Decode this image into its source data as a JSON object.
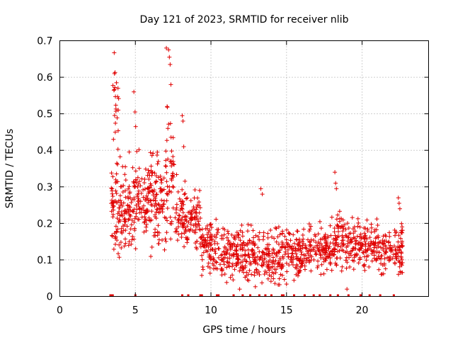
{
  "chart_data": {
    "type": "scatter",
    "title": "Day 121 of 2023, SRMTID for receiver nlib",
    "xlabel": "GPS time / hours",
    "ylabel": "SRMTID / TECUs",
    "xlim": [
      0,
      24.4
    ],
    "ylim": [
      0,
      0.7
    ],
    "xticks": [
      0,
      5,
      10,
      15,
      20
    ],
    "xtick_labels": [
      "0",
      "5",
      "10",
      "15",
      "20"
    ],
    "yticks": [
      0,
      0.1,
      0.2,
      0.3,
      0.4,
      0.5,
      0.6,
      0.7
    ],
    "ytick_labels": [
      "0",
      "0.1",
      "0.2",
      "0.3",
      "0.4",
      "0.5",
      "0.6",
      "0.7"
    ],
    "grid": true,
    "marker": "+",
    "color": "#e00000",
    "series": [
      {
        "name": "SRMTID",
        "segments": [
          {
            "x_start": 3.4,
            "x_end": 4.0,
            "level": 0.25,
            "spread": 0.14,
            "count": 60
          },
          {
            "x_start": 3.5,
            "x_end": 3.9,
            "level": 0.52,
            "spread": 0.1,
            "count": 18
          },
          {
            "x_start": 4.0,
            "x_end": 5.0,
            "level": 0.24,
            "spread": 0.12,
            "count": 90
          },
          {
            "x_start": 5.0,
            "x_end": 6.0,
            "level": 0.26,
            "spread": 0.12,
            "count": 90
          },
          {
            "x_start": 6.0,
            "x_end": 7.0,
            "level": 0.27,
            "spread": 0.13,
            "count": 90
          },
          {
            "x_start": 7.0,
            "x_end": 7.6,
            "level": 0.33,
            "spread": 0.18,
            "count": 50
          },
          {
            "x_start": 7.6,
            "x_end": 8.3,
            "level": 0.22,
            "spread": 0.09,
            "count": 55
          },
          {
            "x_start": 8.3,
            "x_end": 9.3,
            "level": 0.2,
            "spread": 0.09,
            "count": 75
          },
          {
            "x_start": 9.3,
            "x_end": 10.5,
            "level": 0.14,
            "spread": 0.07,
            "count": 95
          },
          {
            "x_start": 10.5,
            "x_end": 12.0,
            "level": 0.12,
            "spread": 0.07,
            "count": 110
          },
          {
            "x_start": 12.0,
            "x_end": 13.5,
            "level": 0.11,
            "spread": 0.07,
            "count": 110
          },
          {
            "x_start": 13.5,
            "x_end": 15.0,
            "level": 0.11,
            "spread": 0.07,
            "count": 110
          },
          {
            "x_start": 15.0,
            "x_end": 16.5,
            "level": 0.12,
            "spread": 0.06,
            "count": 110
          },
          {
            "x_start": 16.5,
            "x_end": 18.0,
            "level": 0.13,
            "spread": 0.06,
            "count": 110
          },
          {
            "x_start": 18.0,
            "x_end": 19.5,
            "level": 0.15,
            "spread": 0.07,
            "count": 110
          },
          {
            "x_start": 19.5,
            "x_end": 21.0,
            "level": 0.14,
            "spread": 0.06,
            "count": 110
          },
          {
            "x_start": 21.0,
            "x_end": 22.7,
            "level": 0.13,
            "spread": 0.06,
            "count": 120
          }
        ],
        "peaks": [
          {
            "x": 3.6,
            "y": 0.667
          },
          {
            "x": 3.62,
            "y": 0.61
          },
          {
            "x": 3.75,
            "y": 0.585
          },
          {
            "x": 3.85,
            "y": 0.57
          },
          {
            "x": 3.55,
            "y": 0.43
          },
          {
            "x": 4.9,
            "y": 0.56
          },
          {
            "x": 4.98,
            "y": 0.505
          },
          {
            "x": 5.02,
            "y": 0.465
          },
          {
            "x": 7.05,
            "y": 0.68
          },
          {
            "x": 7.2,
            "y": 0.675
          },
          {
            "x": 7.25,
            "y": 0.655
          },
          {
            "x": 7.3,
            "y": 0.635
          },
          {
            "x": 7.35,
            "y": 0.58
          },
          {
            "x": 7.1,
            "y": 0.52
          },
          {
            "x": 7.15,
            "y": 0.46
          },
          {
            "x": 8.1,
            "y": 0.495
          },
          {
            "x": 8.15,
            "y": 0.48
          },
          {
            "x": 8.2,
            "y": 0.41
          },
          {
            "x": 13.3,
            "y": 0.295
          },
          {
            "x": 13.4,
            "y": 0.28
          },
          {
            "x": 18.2,
            "y": 0.34
          },
          {
            "x": 18.25,
            "y": 0.31
          },
          {
            "x": 18.3,
            "y": 0.295
          },
          {
            "x": 22.4,
            "y": 0.27
          },
          {
            "x": 22.45,
            "y": 0.255
          },
          {
            "x": 22.5,
            "y": 0.24
          },
          {
            "x": 19.0,
            "y": 0.02
          },
          {
            "x": 11.9,
            "y": 0.02
          }
        ],
        "zero_points": [
          3.35,
          3.4,
          3.45,
          3.5,
          5.0,
          8.1,
          8.5,
          9.3,
          9.4,
          10.4,
          10.5,
          11.5,
          12.1,
          12.6,
          13.2,
          13.6,
          14.0,
          14.7,
          14.8,
          15.5,
          16.2,
          16.8,
          17.2,
          17.9,
          18.4,
          19.1,
          19.9,
          20.5,
          21.2,
          22.1
        ]
      }
    ]
  }
}
